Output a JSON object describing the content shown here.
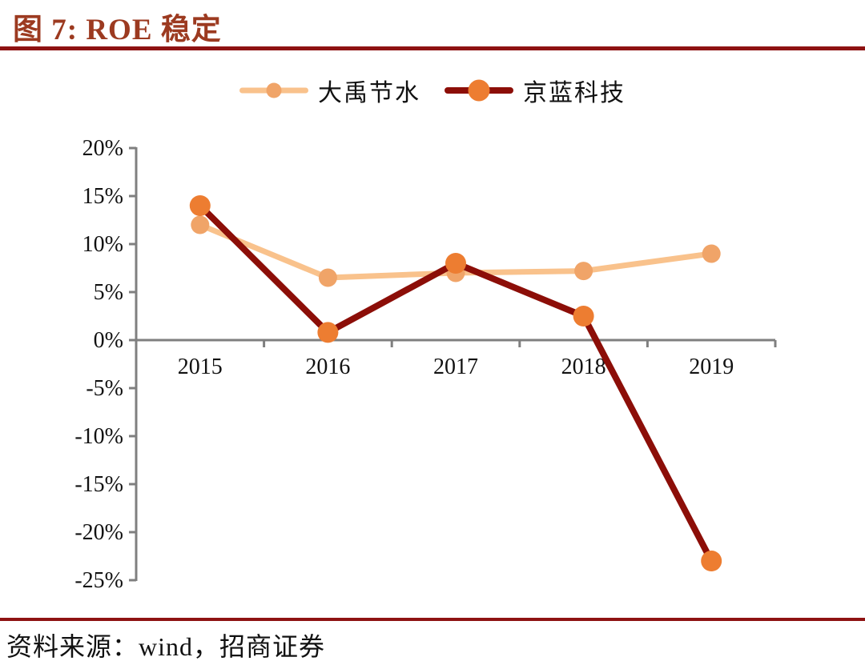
{
  "figure": {
    "title": "图 7: ROE 稳定",
    "source_label": "资料来源：wind，招商证券"
  },
  "colors": {
    "title_text": "#9C3A20",
    "rule": "#8E1212",
    "axis": "#7F7F7F",
    "label_text": "#111111",
    "dayu_line": "#F9C28C",
    "dayu_marker": "#F0A468",
    "jinglan_line": "#8C0E08",
    "jinglan_marker": "#ED7D31"
  },
  "chart_data": {
    "type": "line",
    "title": "ROE 稳定",
    "categories": [
      "2015",
      "2016",
      "2017",
      "2018",
      "2019"
    ],
    "series": [
      {
        "name": "大禹节水",
        "values": [
          12,
          6.5,
          7,
          7.2,
          9
        ],
        "line_color": "#F9C28C",
        "marker_color": "#F0A468"
      },
      {
        "name": "京蓝科技",
        "values": [
          14,
          0.8,
          8,
          2.5,
          -23
        ],
        "line_color": "#8C0E08",
        "marker_color": "#ED7D31"
      }
    ],
    "xlabel": "",
    "ylabel": "",
    "y_ticks": [
      "20%",
      "15%",
      "10%",
      "5%",
      "0%",
      "-5%",
      "-10%",
      "-15%",
      "-20%",
      "-25%"
    ],
    "ylim": [
      -25,
      20
    ],
    "y_tick_step": 5,
    "unit": "percent",
    "legend_position": "top",
    "grid": false
  }
}
